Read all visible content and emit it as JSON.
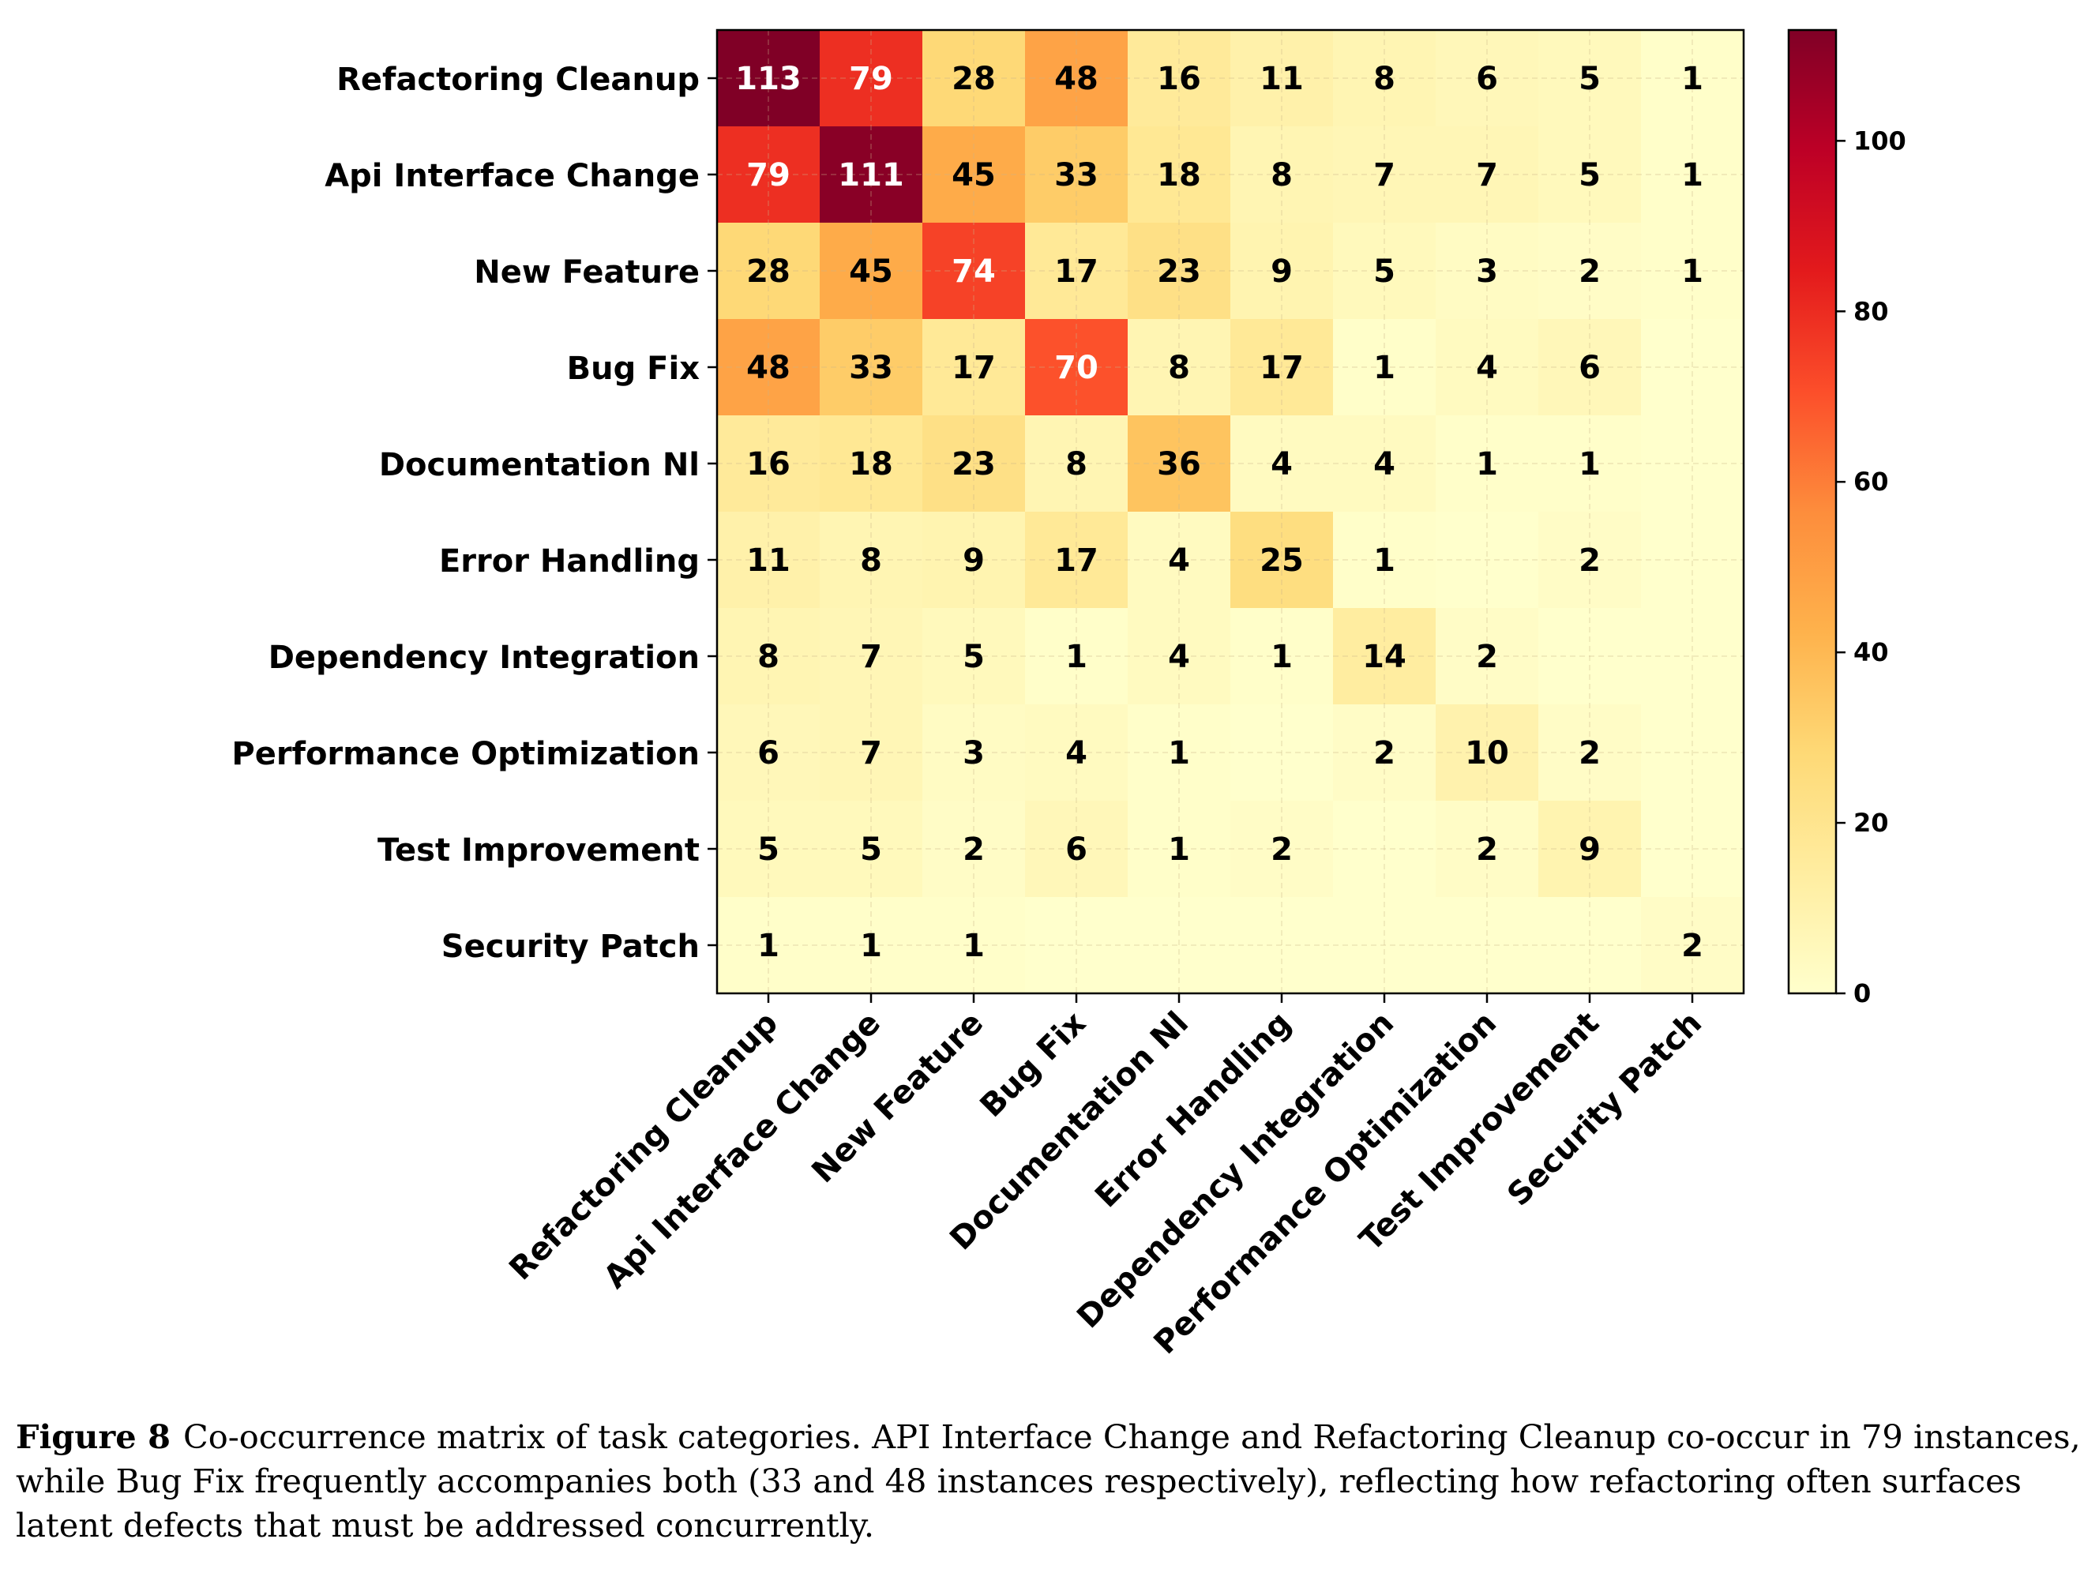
{
  "chart_data": {
    "type": "heatmap",
    "categories": [
      "Refactoring Cleanup",
      "Api Interface Change",
      "New Feature",
      "Bug Fix",
      "Documentation Nl",
      "Error Handling",
      "Dependency Integration",
      "Performance Optimization",
      "Test Improvement",
      "Security Patch"
    ],
    "matrix": [
      [
        113,
        79,
        28,
        48,
        16,
        11,
        8,
        6,
        5,
        1
      ],
      [
        79,
        111,
        45,
        33,
        18,
        8,
        7,
        7,
        5,
        1
      ],
      [
        28,
        45,
        74,
        17,
        23,
        9,
        5,
        3,
        2,
        1
      ],
      [
        48,
        33,
        17,
        70,
        8,
        17,
        1,
        4,
        6,
        0
      ],
      [
        16,
        18,
        23,
        8,
        36,
        4,
        4,
        1,
        1,
        0
      ],
      [
        11,
        8,
        9,
        17,
        4,
        25,
        1,
        0,
        2,
        0
      ],
      [
        8,
        7,
        5,
        1,
        4,
        1,
        14,
        2,
        0,
        0
      ],
      [
        6,
        7,
        3,
        4,
        1,
        0,
        2,
        10,
        2,
        0
      ],
      [
        5,
        5,
        2,
        6,
        1,
        2,
        0,
        2,
        9,
        0
      ],
      [
        1,
        1,
        1,
        0,
        0,
        0,
        0,
        0,
        0,
        2
      ]
    ],
    "colorscale": "YlOrRd",
    "colorbar_range": [
      0,
      113
    ],
    "colorbar_ticks": [
      0,
      20,
      40,
      60,
      80,
      100
    ],
    "zero_label_hidden": true,
    "grid": true
  },
  "caption": {
    "label": "Figure 8",
    "text": "Co-occurrence matrix of task categories. API Interface Change and Refactoring Cleanup co-occur in 79 instances, while Bug Fix frequently accompanies both (33 and 48 instances respectively), reflecting how refactoring often surfaces latent defects that must be addressed concurrently."
  }
}
